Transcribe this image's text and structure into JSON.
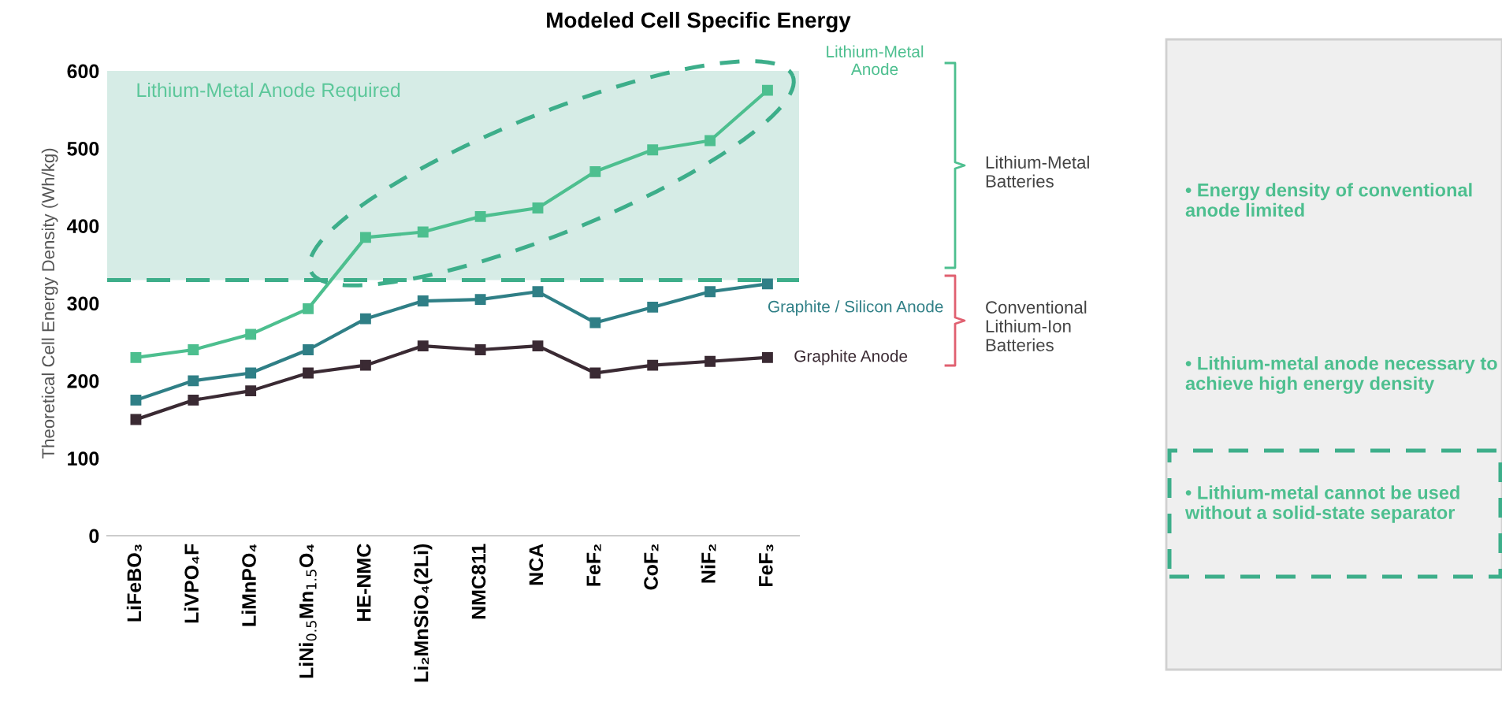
{
  "chart_data": {
    "type": "line",
    "title": "Modeled Cell Specific Energy",
    "ylabel": "Theoretical Cell Energy Density (Wh/kg)",
    "categories": [
      "LiFeBO₃",
      "LiVPO₄F",
      "LiMnPO₄",
      "LiNi$_{0.5}$Mn$_{1.5}$O₄",
      "HE-NMC",
      "Li₂MnSiO₄(2Li)",
      "NMC811",
      "NCA",
      "FeF₂",
      "CoF₂",
      "NiF₂",
      "FeF₃"
    ],
    "series": [
      {
        "name": "Lithium-Metal Anode",
        "color": "#4dbf8f",
        "values": [
          230,
          240,
          260,
          293,
          385,
          392,
          412,
          423,
          470,
          498,
          510,
          575
        ]
      },
      {
        "name": "Graphite / Silicon Anode",
        "color": "#2f7f86",
        "values": [
          175,
          200,
          210,
          240,
          280,
          303,
          305,
          315,
          275,
          295,
          315,
          325
        ]
      },
      {
        "name": "Graphite Anode",
        "color": "#3a2a33",
        "values": [
          150,
          175,
          187,
          210,
          220,
          245,
          240,
          245,
          210,
          220,
          225,
          230
        ]
      }
    ],
    "ylim": [
      0,
      600
    ],
    "yticks": [
      0,
      100,
      200,
      300,
      400,
      500,
      600
    ],
    "bands": [
      {
        "axis": "y",
        "from": 330,
        "to": 600,
        "label": "Lithium-Metal Anode Required",
        "color": "#d6ece6"
      }
    ],
    "ref_lines": [
      {
        "axis": "y",
        "value": 330,
        "color": "#3dae8a",
        "line_style": "dashed"
      }
    ],
    "annotations": [
      "Lithium-Metal\nBatteries",
      "Conventional\nLithium-Ion\nBatteries",
      "• Energy density of conventional anode limited",
      "• Lithium-metal anode necessary to achieve high energy density",
      "• Lithium-metal cannot be used without a solid-state separator"
    ],
    "marker": "square",
    "line_style": "solid",
    "grid": false,
    "legend": false
  }
}
